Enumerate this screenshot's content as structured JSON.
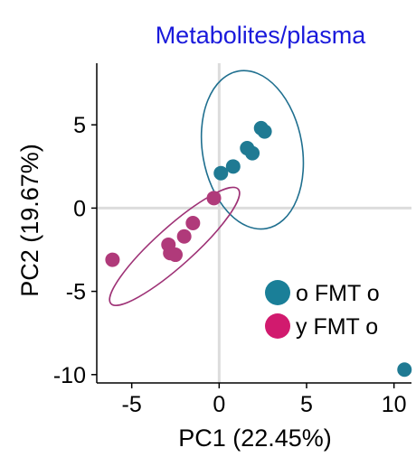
{
  "chart_data": {
    "type": "scatter",
    "title": "Metabolites/plasma",
    "xlabel": "PC1 (22.45%)",
    "ylabel": "PC2 (19.67%)",
    "xlim": [
      -7,
      11
    ],
    "ylim": [
      -10.5,
      8.7
    ],
    "x_ticks": [
      -5,
      0,
      5,
      10
    ],
    "y_ticks": [
      5,
      0,
      -5,
      -10
    ],
    "x_tick_labels": [
      "-5",
      "0",
      "5",
      "10"
    ],
    "y_tick_labels": [
      "5",
      "0",
      "-5",
      "-10"
    ],
    "zero_lines": true,
    "legend_position": "bottom-right",
    "series": [
      {
        "name": "o FMT o",
        "color": "#1f7a93",
        "points": [
          {
            "x": 0.1,
            "y": 2.1
          },
          {
            "x": 0.8,
            "y": 2.5
          },
          {
            "x": 1.6,
            "y": 3.6
          },
          {
            "x": 1.9,
            "y": 3.3
          },
          {
            "x": 2.4,
            "y": 4.8
          },
          {
            "x": 2.6,
            "y": 4.6
          },
          {
            "x": 10.6,
            "y": -9.7
          }
        ],
        "ellipse": {
          "cx": 1.9,
          "cy": 3.5,
          "rx": 2.85,
          "ry": 4.8,
          "angle_deg": -10
        }
      },
      {
        "name": "y FMT o",
        "color": "#b03a7a",
        "points": [
          {
            "x": -6.1,
            "y": -3.1
          },
          {
            "x": -2.9,
            "y": -2.2
          },
          {
            "x": -2.8,
            "y": -2.7
          },
          {
            "x": -2.5,
            "y": -2.8
          },
          {
            "x": -2.0,
            "y": -1.7
          },
          {
            "x": -1.5,
            "y": -0.9
          },
          {
            "x": -0.3,
            "y": 0.6
          }
        ],
        "ellipse": {
          "cx": -2.55,
          "cy": -2.3,
          "rx": 4.9,
          "ry": 1.15,
          "angle_deg": -42
        }
      }
    ],
    "legend_colors": [
      "#1a7f98",
      "#d11a6e"
    ],
    "title_color": "#1a1adb",
    "ellipse_colors": [
      "#1f6f8f",
      "#9e3276"
    ]
  }
}
